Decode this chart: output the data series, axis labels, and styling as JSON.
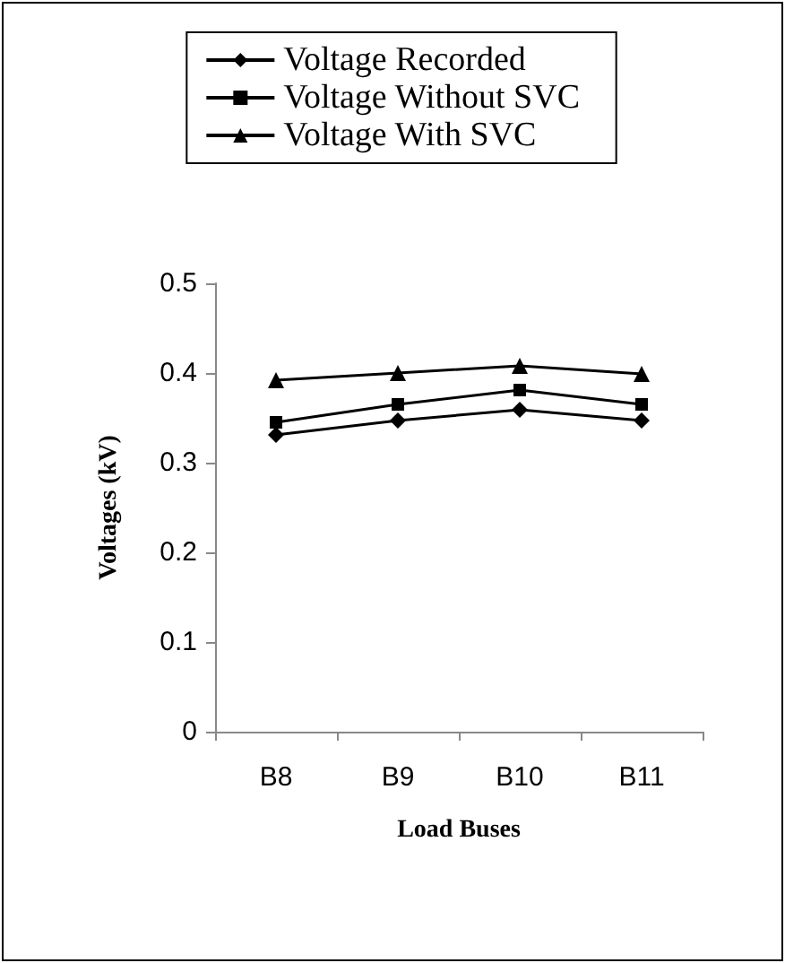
{
  "chart_data": {
    "type": "line",
    "xlabel": "Load Buses",
    "ylabel": "Voltages (kV)",
    "categories": [
      "B8",
      "B9",
      "B10",
      "B11"
    ],
    "series": [
      {
        "name": "Voltage Recorded",
        "color": "#000000",
        "values": [
          0.331,
          0.347,
          0.359,
          0.347
        ],
        "marker": "diamond"
      },
      {
        "name": "Voltage Without SVC",
        "color": "#000000",
        "values": [
          0.345,
          0.365,
          0.381,
          0.365
        ],
        "marker": "square"
      },
      {
        "name": "Voltage With SVC",
        "color": "#000000",
        "values": [
          0.392,
          0.4,
          0.408,
          0.399
        ],
        "marker": "triangle"
      }
    ],
    "ylim": [
      0,
      0.5
    ],
    "yticks": [
      0,
      0.1,
      0.2,
      0.3,
      0.4,
      0.5
    ],
    "grid": false,
    "legend": "top"
  }
}
